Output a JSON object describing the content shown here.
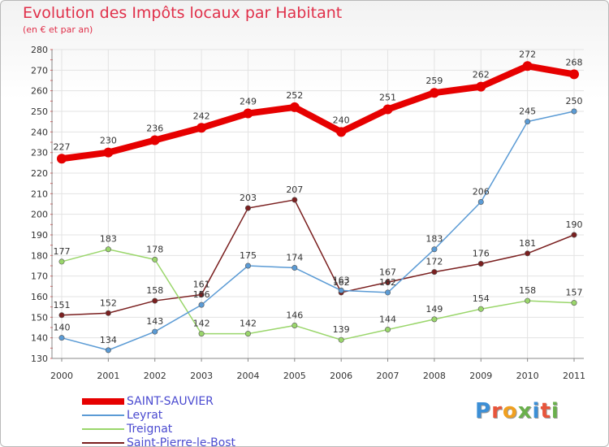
{
  "brand": "Proxiti",
  "chart_data": {
    "type": "line",
    "title": "Evolution des Impôts locaux par Habitant",
    "subtitle": "(en € et par an)",
    "xlabel": "",
    "ylabel": "",
    "categories": [
      "2000",
      "2001",
      "2002",
      "2003",
      "2004",
      "2005",
      "2006",
      "2007",
      "2008",
      "2009",
      "2010",
      "2011"
    ],
    "ylim": [
      130,
      280
    ],
    "yticks": [
      130,
      140,
      150,
      160,
      170,
      180,
      190,
      200,
      210,
      220,
      230,
      240,
      250,
      260,
      270,
      280
    ],
    "grid": true,
    "legend_position": "bottom-left",
    "series": [
      {
        "name": "SAINT-SAUVIER",
        "color": "#e60000",
        "values": [
          227,
          230,
          236,
          242,
          249,
          252,
          240,
          251,
          259,
          262,
          272,
          268
        ]
      },
      {
        "name": "Leyrat",
        "color": "#5b9bd5",
        "values": [
          140,
          134,
          143,
          156,
          175,
          174,
          163,
          162,
          183,
          206,
          245,
          250
        ]
      },
      {
        "name": "Treignat",
        "color": "#9ad66b",
        "values": [
          177,
          183,
          178,
          142,
          142,
          146,
          139,
          144,
          149,
          154,
          158,
          157
        ]
      },
      {
        "name": "Saint-Pierre-le-Bost",
        "color": "#7a1f1f",
        "values": [
          151,
          152,
          158,
          161,
          203,
          207,
          162,
          167,
          172,
          176,
          181,
          190
        ]
      }
    ]
  }
}
